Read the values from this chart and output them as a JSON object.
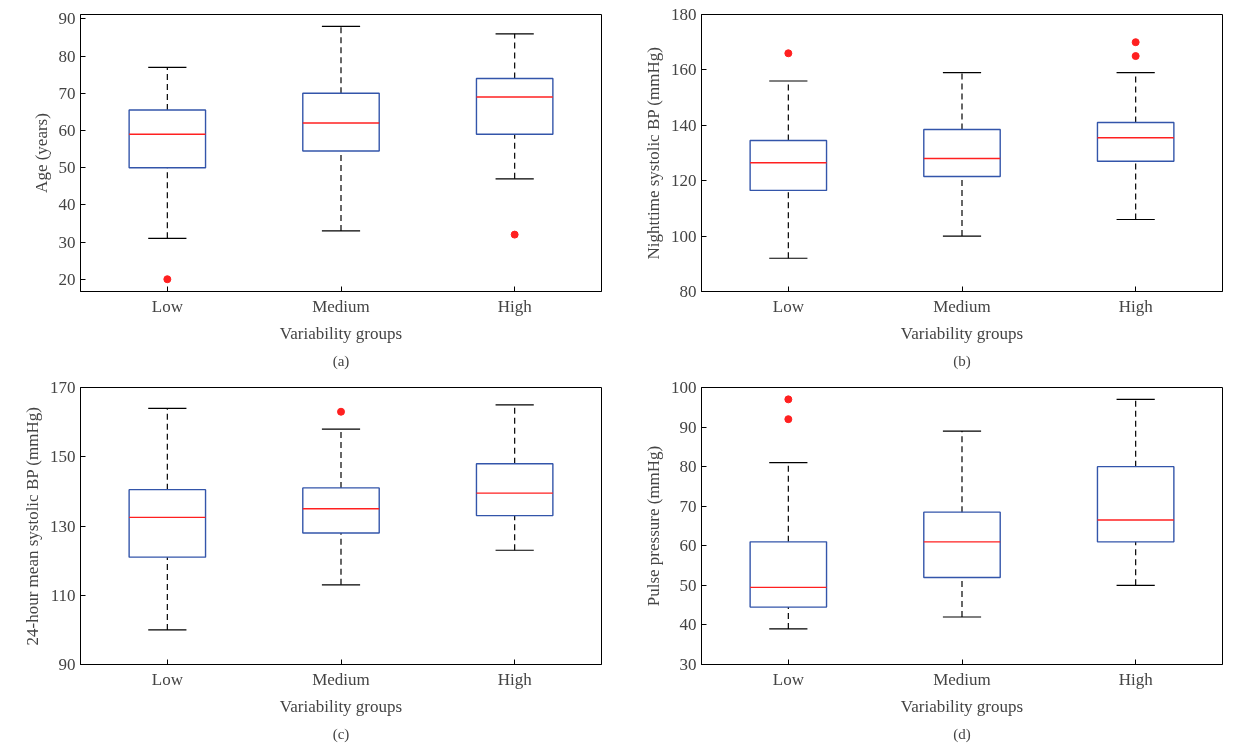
{
  "chart_data": [
    {
      "type": "box",
      "categories": [
        "Low",
        "Medium",
        "High"
      ],
      "xlabel": "Variability groups",
      "ylabel": "Age (years)",
      "marker": "circle",
      "ylim": [
        16.7,
        91.2
      ],
      "yticks": [
        20,
        30,
        40,
        50,
        60,
        70,
        80,
        90
      ],
      "grid": false,
      "annotations": [
        "(a)"
      ],
      "series": [
        {
          "color": "#3355aa",
          "boxes": [
            {
              "low": 31,
              "q1": 50,
              "median": 59,
              "q3": 65.5,
              "high": 77,
              "outliers": [
                20
              ]
            },
            {
              "low": 33,
              "q1": 54.5,
              "median": 62,
              "q3": 70,
              "high": 88
            },
            {
              "low": 47,
              "q1": 59,
              "median": 69,
              "q3": 74,
              "high": 86,
              "outliers": [
                32
              ]
            }
          ]
        }
      ]
    },
    {
      "type": "box",
      "categories": [
        "Low",
        "Medium",
        "High"
      ],
      "xlabel": "Variability groups",
      "ylabel": "Nighttime systolic BP (mmHg)",
      "marker": "circle",
      "ylim": [
        80,
        180
      ],
      "yticks": [
        80,
        100,
        120,
        140,
        160,
        180
      ],
      "grid": false,
      "annotations": [
        "(b)"
      ],
      "series": [
        {
          "color": "#3355aa",
          "boxes": [
            {
              "low": 92,
              "q1": 116.5,
              "median": 126.5,
              "q3": 134.5,
              "high": 156,
              "outliers": [
                166
              ]
            },
            {
              "low": 100,
              "q1": 121.5,
              "median": 128,
              "q3": 138.5,
              "high": 159
            },
            {
              "low": 106,
              "q1": 127,
              "median": 135.5,
              "q3": 141,
              "high": 159,
              "outliers": [
                165,
                170
              ]
            }
          ]
        }
      ]
    },
    {
      "type": "box",
      "categories": [
        "Low",
        "Medium",
        "High"
      ],
      "xlabel": "Variability groups",
      "ylabel": "24-hour mean systolic BP (mmHg)",
      "marker": "circle",
      "ylim": [
        90,
        170
      ],
      "yticks": [
        90,
        110,
        130,
        150,
        170
      ],
      "grid": false,
      "annotations": [
        "(c)"
      ],
      "series": [
        {
          "color": "#3355aa",
          "boxes": [
            {
              "low": 100,
              "q1": 121,
              "median": 132.5,
              "q3": 140.5,
              "high": 164
            },
            {
              "low": 113,
              "q1": 128,
              "median": 135,
              "q3": 141,
              "high": 158,
              "outliers": [
                163
              ]
            },
            {
              "low": 123,
              "q1": 133,
              "median": 139.5,
              "q3": 148,
              "high": 165
            }
          ]
        }
      ]
    },
    {
      "type": "box",
      "categories": [
        "Low",
        "Medium",
        "High"
      ],
      "xlabel": "Variability groups",
      "ylabel": "Pulse pressure (mmHg)",
      "marker": "circle",
      "ylim": [
        30,
        100
      ],
      "yticks": [
        30,
        40,
        50,
        60,
        70,
        80,
        90,
        100
      ],
      "grid": false,
      "annotations": [
        "(d)"
      ],
      "series": [
        {
          "color": "#3355aa",
          "boxes": [
            {
              "low": 39,
              "q1": 44.5,
              "median": 49.5,
              "q3": 61,
              "high": 81,
              "outliers": [
                92,
                97
              ]
            },
            {
              "low": 42,
              "q1": 52,
              "median": 61,
              "q3": 68.5,
              "high": 89
            },
            {
              "low": 50,
              "q1": 61,
              "median": 66.5,
              "q3": 80,
              "high": 97
            }
          ]
        }
      ]
    }
  ]
}
